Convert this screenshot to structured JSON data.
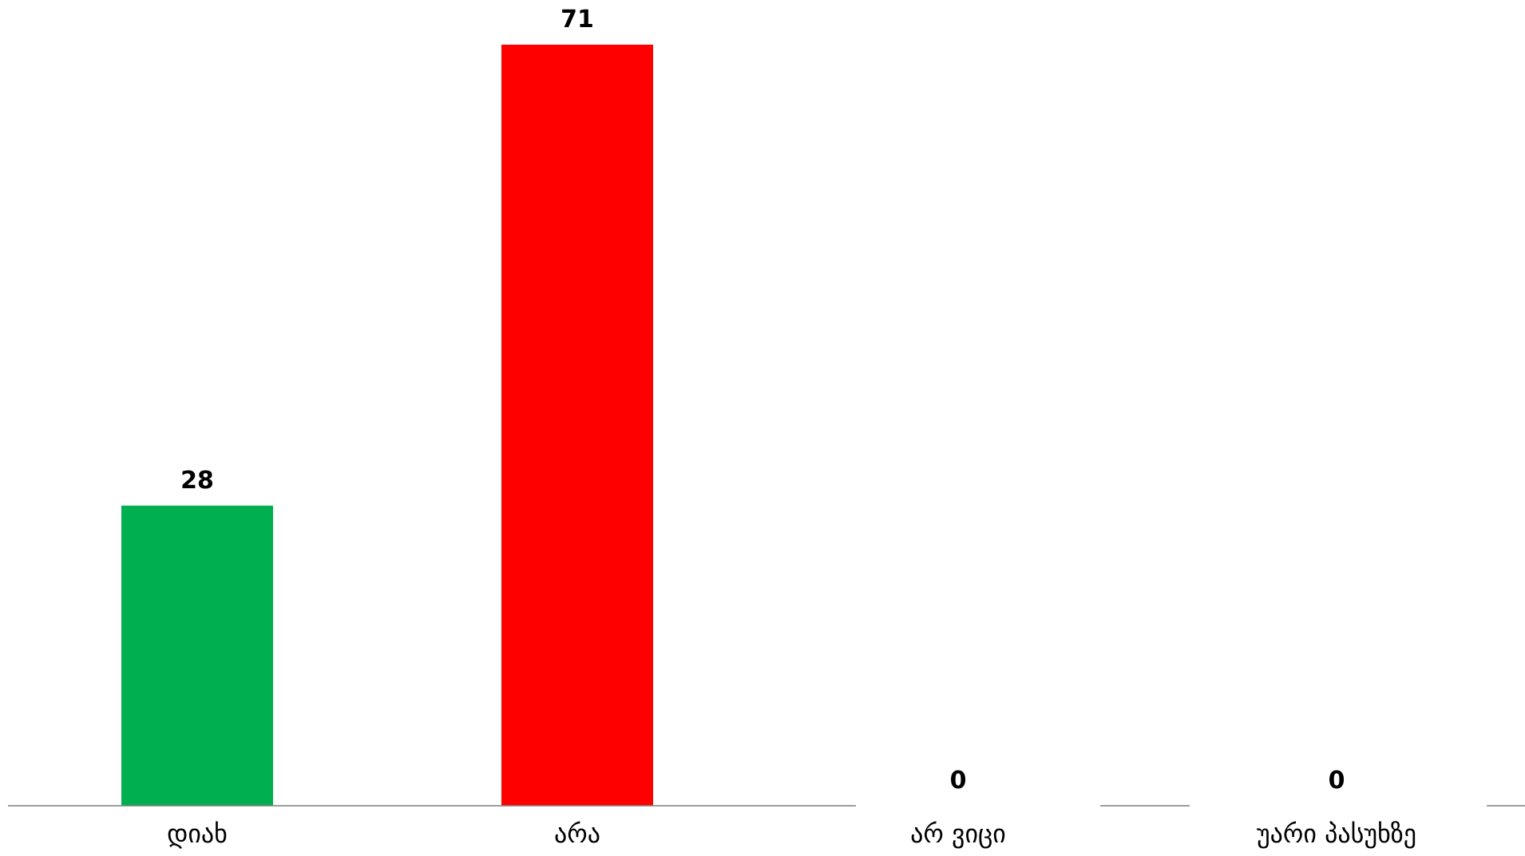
{
  "chart_data": {
    "type": "bar",
    "categories": [
      "დიახ",
      "არა",
      "არ ვიცი",
      "უარი პასუხზე"
    ],
    "values": [
      28,
      71,
      0,
      0
    ],
    "data_labels": [
      "28",
      "71",
      "0",
      "0"
    ],
    "bar_colors": [
      "#00b050",
      "#ff0000",
      "#00b050",
      "#00b050"
    ],
    "axis_color": "#7f7f7f",
    "ylim": [
      0,
      71
    ],
    "grid": false,
    "legend": "none"
  }
}
